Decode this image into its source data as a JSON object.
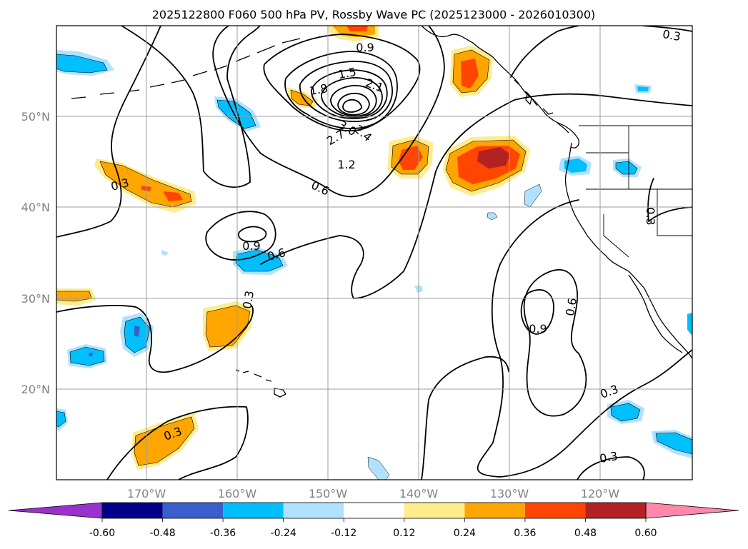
{
  "title": "2025122800 F060 500 hPa PV, Rossby Wave PC (2025123000 - 2026010300)",
  "lat_labels": [
    "50°N",
    "40°N",
    "30°N",
    "20°N"
  ],
  "lon_labels": [
    "170°W",
    "160°W",
    "150°W",
    "140°W",
    "130°W",
    "120°W"
  ],
  "contour_labels": [
    "0.9",
    "1.5",
    "1.8",
    "2.1",
    "3.0",
    "2.7",
    "2.4",
    "1.2",
    "0.6",
    "0.3",
    "0.9",
    "0.6",
    "0.3",
    "0.3",
    "0.9",
    "0.6",
    "0.3",
    "0.3",
    "0.3",
    "0.3"
  ],
  "colorbar": {
    "ticks": [
      "-0.60",
      "-0.48",
      "-0.36",
      "-0.24",
      "-0.12",
      "0.12",
      "0.24",
      "0.36",
      "0.48",
      "0.60"
    ],
    "under_color": "#9932cc",
    "over_color": "#ff88aa",
    "colors": [
      "#00008b",
      "#3a5fcd",
      "#00bfff",
      "#b0e2ff",
      "#ffffff",
      "#ffec8b",
      "#ffa500",
      "#ff4500",
      "#b22222"
    ]
  },
  "shade_colors": {
    "neg_light": "#b0e2ff",
    "neg_mid": "#00bfff",
    "neg_strong": "#3a5fcd",
    "pos_light": "#ffec8b",
    "pos_mid": "#ffa500",
    "pos_strong": "#ff4500",
    "pos_max": "#b22222"
  }
}
